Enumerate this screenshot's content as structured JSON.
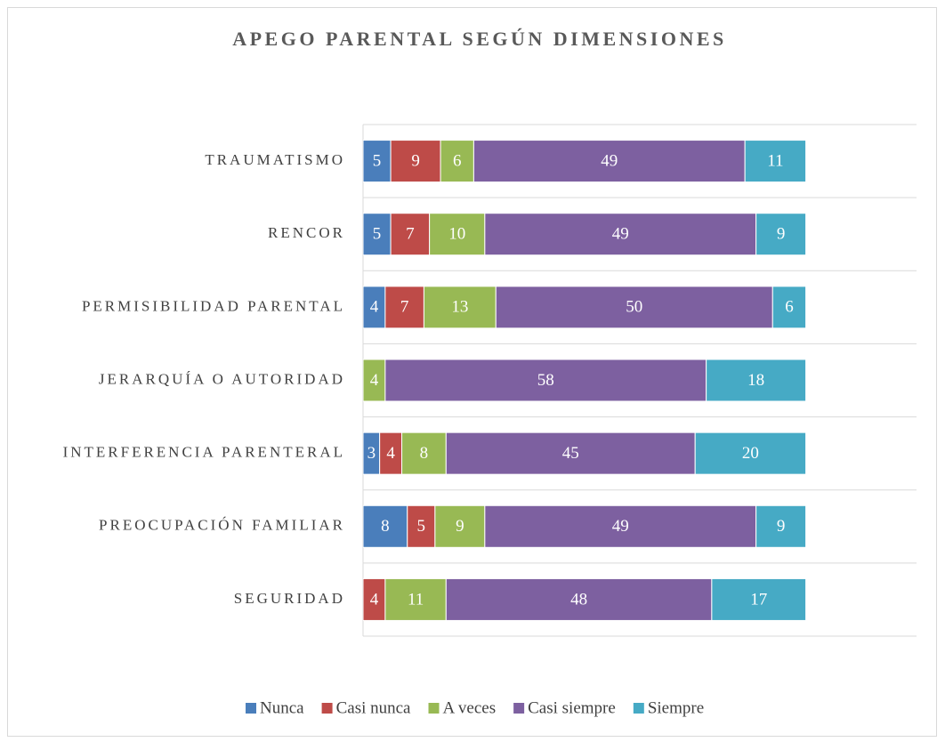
{
  "chart_data": {
    "type": "stacked_bar_horizontal",
    "title": "APEGO PARENTAL SEGÚN DIMENSIONES",
    "categories": [
      "TRAUMATISMO",
      "RENCOR",
      "PERMISIBILIDAD PARENTAL",
      "JERARQUÍA O AUTORIDAD",
      "INTERFERENCIA PARENTERAL",
      "PREOCUPACIÓN FAMILIAR",
      "SEGURIDAD"
    ],
    "series": [
      {
        "name": "Nunca",
        "color": "#4a7ebb",
        "values": [
          5,
          5,
          4,
          0,
          3,
          8,
          0
        ]
      },
      {
        "name": "Casi nunca",
        "color": "#be4b48",
        "values": [
          9,
          7,
          7,
          0,
          4,
          5,
          4
        ]
      },
      {
        "name": "A veces",
        "color": "#98b954",
        "values": [
          6,
          10,
          13,
          4,
          8,
          9,
          11
        ]
      },
      {
        "name": "Casi siempre",
        "color": "#7d60a0",
        "values": [
          49,
          49,
          50,
          58,
          45,
          49,
          48
        ]
      },
      {
        "name": "Siempre",
        "color": "#46aac5",
        "values": [
          11,
          9,
          6,
          18,
          20,
          9,
          17
        ]
      }
    ],
    "xlim": [
      0,
      100
    ],
    "legend": "bottom"
  }
}
